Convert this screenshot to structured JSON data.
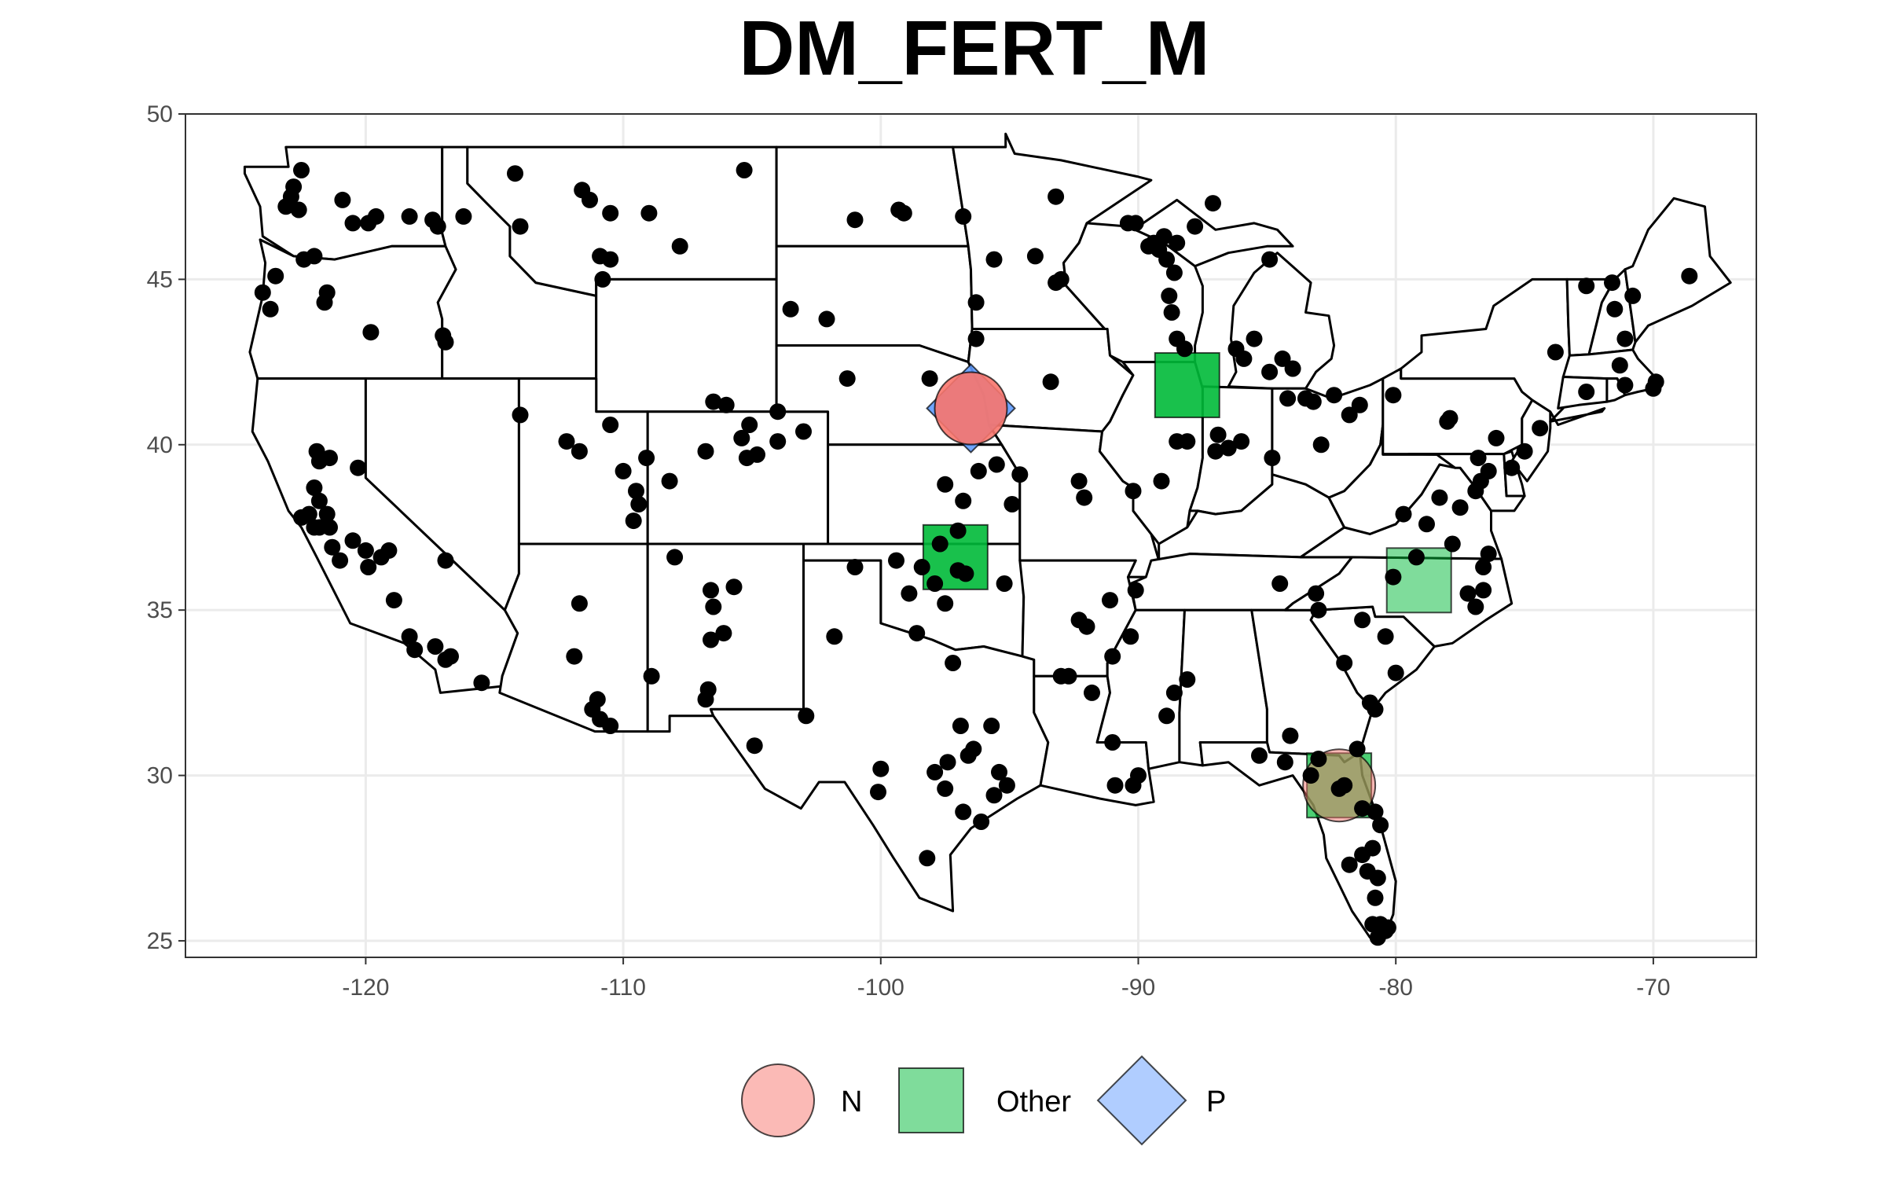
{
  "chart_data": {
    "type": "scatter",
    "title": "DM_FERT_M",
    "xlabel": "",
    "ylabel": "",
    "xlim": [
      -127,
      -66
    ],
    "ylim": [
      24.5,
      50
    ],
    "x_ticks": [
      -120,
      -110,
      -100,
      -90,
      -80,
      -70
    ],
    "x_tick_labels": [
      "-120",
      "-110",
      "-100",
      "-90",
      "-80",
      "-70"
    ],
    "y_ticks": [
      25,
      30,
      35,
      40,
      45,
      50
    ],
    "y_tick_labels": [
      "25",
      "30",
      "35",
      "40",
      "45",
      "50"
    ],
    "grid": true,
    "legend_position": "bottom",
    "legend": [
      {
        "label": "N",
        "shape": "circle",
        "color": "#F8766D"
      },
      {
        "label": "Other",
        "shape": "square",
        "color": "#00BA38"
      },
      {
        "label": "P",
        "shape": "diamond",
        "color": "#619CFF"
      }
    ],
    "highlights": [
      {
        "category": "N",
        "lon": -96.5,
        "lat": 41.1,
        "alpha": 0.9
      },
      {
        "category": "P",
        "lon": -96.5,
        "lat": 41.1,
        "alpha": 0.9
      },
      {
        "category": "Other",
        "lon": -88.1,
        "lat": 41.8,
        "alpha": 0.9
      },
      {
        "category": "Other",
        "lon": -97.1,
        "lat": 36.6,
        "alpha": 0.9
      },
      {
        "category": "Other",
        "lon": -79.1,
        "lat": 35.9,
        "alpha": 0.5
      },
      {
        "category": "Other",
        "lon": -82.2,
        "lat": 29.7,
        "alpha": 0.7
      },
      {
        "category": "N",
        "lon": -82.2,
        "lat": 29.7,
        "alpha": 0.5
      }
    ],
    "sites": [
      [
        -122.5,
        48.3
      ],
      [
        -122.8,
        47.8
      ],
      [
        -123.1,
        47.2
      ],
      [
        -122.6,
        47.1
      ],
      [
        -120.9,
        47.4
      ],
      [
        -120.5,
        46.7
      ],
      [
        -119.9,
        46.7
      ],
      [
        -119.6,
        46.9
      ],
      [
        -117.4,
        46.8
      ],
      [
        -117.2,
        46.6
      ],
      [
        -116.2,
        46.9
      ],
      [
        -118.3,
        46.9
      ],
      [
        -114.2,
        48.2
      ],
      [
        -114.0,
        46.6
      ],
      [
        -111.6,
        47.7
      ],
      [
        -111.3,
        47.4
      ],
      [
        -110.5,
        47.0
      ],
      [
        -109.0,
        47.0
      ],
      [
        -105.3,
        48.3
      ],
      [
        -110.9,
        45.7
      ],
      [
        -110.5,
        45.6
      ],
      [
        -110.8,
        45.0
      ],
      [
        -107.8,
        46.0
      ],
      [
        -101.0,
        46.8
      ],
      [
        -99.3,
        47.1
      ],
      [
        -99.1,
        47.0
      ],
      [
        -96.8,
        46.9
      ],
      [
        -95.6,
        45.6
      ],
      [
        -93.2,
        44.9
      ],
      [
        -93.0,
        45.0
      ],
      [
        -96.3,
        44.3
      ],
      [
        -96.3,
        43.2
      ],
      [
        -98.1,
        42.0
      ],
      [
        -101.3,
        42.0
      ],
      [
        -102.1,
        43.8
      ],
      [
        -103.5,
        44.1
      ],
      [
        -104.0,
        41.0
      ],
      [
        -93.4,
        41.9
      ],
      [
        -94.0,
        45.7
      ],
      [
        -93.2,
        47.5
      ],
      [
        -89.6,
        46.0
      ],
      [
        -89.2,
        45.9
      ],
      [
        -89.4,
        46.1
      ],
      [
        -89.0,
        46.3
      ],
      [
        -88.5,
        46.1
      ],
      [
        -88.9,
        45.6
      ],
      [
        -88.6,
        45.2
      ],
      [
        -88.7,
        44.0
      ],
      [
        -88.8,
        44.5
      ],
      [
        -88.5,
        43.2
      ],
      [
        -88.2,
        42.9
      ],
      [
        -90.1,
        46.7
      ],
      [
        -90.4,
        46.7
      ],
      [
        -87.1,
        47.3
      ],
      [
        -87.8,
        46.6
      ],
      [
        -84.9,
        45.6
      ],
      [
        -85.5,
        43.2
      ],
      [
        -84.4,
        42.6
      ],
      [
        -84.9,
        42.2
      ],
      [
        -85.9,
        42.6
      ],
      [
        -86.2,
        42.9
      ],
      [
        -84.0,
        42.3
      ],
      [
        -84.2,
        41.4
      ],
      [
        -83.5,
        41.4
      ],
      [
        -83.2,
        41.3
      ],
      [
        -82.4,
        41.5
      ],
      [
        -81.4,
        41.2
      ],
      [
        -81.8,
        40.9
      ],
      [
        -82.9,
        40.0
      ],
      [
        -84.8,
        39.6
      ],
      [
        -86.0,
        40.1
      ],
      [
        -86.5,
        39.9
      ],
      [
        -86.9,
        40.3
      ],
      [
        -87.0,
        39.8
      ],
      [
        -88.5,
        40.1
      ],
      [
        -88.1,
        40.1
      ],
      [
        -89.1,
        38.9
      ],
      [
        -90.2,
        38.6
      ],
      [
        -92.3,
        38.9
      ],
      [
        -92.1,
        38.4
      ],
      [
        -94.6,
        39.1
      ],
      [
        -94.9,
        38.2
      ],
      [
        -95.5,
        39.4
      ],
      [
        -96.2,
        39.2
      ],
      [
        -97.5,
        38.8
      ],
      [
        -96.8,
        38.3
      ],
      [
        -97.0,
        37.4
      ],
      [
        -97.7,
        37.0
      ],
      [
        -98.4,
        36.3
      ],
      [
        -97.0,
        36.2
      ],
      [
        -96.7,
        36.1
      ],
      [
        -97.9,
        35.8
      ],
      [
        -97.5,
        35.2
      ],
      [
        -98.9,
        35.5
      ],
      [
        -99.4,
        36.5
      ],
      [
        -101.0,
        36.3
      ],
      [
        -101.8,
        34.2
      ],
      [
        -98.6,
        34.3
      ],
      [
        -97.2,
        33.4
      ],
      [
        -96.9,
        31.5
      ],
      [
        -96.6,
        30.6
      ],
      [
        -97.4,
        30.4
      ],
      [
        -97.9,
        30.1
      ],
      [
        -97.5,
        29.6
      ],
      [
        -96.4,
        30.8
      ],
      [
        -95.7,
        31.5
      ],
      [
        -95.4,
        30.1
      ],
      [
        -95.6,
        29.4
      ],
      [
        -95.1,
        29.7
      ],
      [
        -96.1,
        28.6
      ],
      [
        -96.8,
        28.9
      ],
      [
        -98.2,
        27.5
      ],
      [
        -100.0,
        30.2
      ],
      [
        -100.1,
        29.5
      ],
      [
        -102.9,
        31.8
      ],
      [
        -104.9,
        30.9
      ],
      [
        -106.8,
        32.3
      ],
      [
        -106.7,
        32.6
      ],
      [
        -106.6,
        34.1
      ],
      [
        -106.1,
        34.3
      ],
      [
        -106.5,
        35.1
      ],
      [
        -106.6,
        35.6
      ],
      [
        -105.7,
        35.7
      ],
      [
        -108.0,
        36.6
      ],
      [
        -108.9,
        33.0
      ],
      [
        -110.5,
        31.5
      ],
      [
        -110.9,
        31.7
      ],
      [
        -111.0,
        32.3
      ],
      [
        -111.2,
        32.0
      ],
      [
        -111.9,
        33.6
      ],
      [
        -111.7,
        35.2
      ],
      [
        -109.6,
        37.7
      ],
      [
        -109.5,
        38.6
      ],
      [
        -109.4,
        38.2
      ],
      [
        -110.0,
        39.2
      ],
      [
        -110.5,
        40.6
      ],
      [
        -111.7,
        39.8
      ],
      [
        -112.2,
        40.1
      ],
      [
        -114.0,
        40.9
      ],
      [
        -116.9,
        36.5
      ],
      [
        -115.5,
        32.8
      ],
      [
        -116.7,
        33.6
      ],
      [
        -116.9,
        33.5
      ],
      [
        -117.3,
        33.9
      ],
      [
        -118.1,
        33.8
      ],
      [
        -118.3,
        34.2
      ],
      [
        -118.9,
        35.3
      ],
      [
        -119.1,
        36.8
      ],
      [
        -119.4,
        36.6
      ],
      [
        -119.9,
        36.3
      ],
      [
        -120.0,
        36.8
      ],
      [
        -120.5,
        37.1
      ],
      [
        -121.0,
        36.5
      ],
      [
        -121.3,
        36.9
      ],
      [
        -121.4,
        37.5
      ],
      [
        -121.8,
        37.5
      ],
      [
        -121.5,
        37.9
      ],
      [
        -122.0,
        37.5
      ],
      [
        -122.2,
        37.9
      ],
      [
        -122.5,
        37.8
      ],
      [
        -121.8,
        38.3
      ],
      [
        -122.0,
        38.7
      ],
      [
        -121.8,
        39.5
      ],
      [
        -121.9,
        39.8
      ],
      [
        -121.4,
        39.6
      ],
      [
        -120.3,
        39.3
      ],
      [
        -119.8,
        43.4
      ],
      [
        -116.9,
        43.1
      ],
      [
        -117.0,
        43.3
      ],
      [
        -122.0,
        45.7
      ],
      [
        -122.4,
        45.6
      ],
      [
        -121.5,
        44.6
      ],
      [
        -121.6,
        44.3
      ],
      [
        -123.5,
        45.1
      ],
      [
        -124.0,
        44.6
      ],
      [
        -123.7,
        44.1
      ],
      [
        -122.9,
        47.5
      ],
      [
        -109.1,
        39.6
      ],
      [
        -106.8,
        39.8
      ],
      [
        -105.1,
        40.6
      ],
      [
        -105.4,
        40.2
      ],
      [
        -105.2,
        39.6
      ],
      [
        -104.8,
        39.7
      ],
      [
        -104.0,
        40.1
      ],
      [
        -103.0,
        40.4
      ],
      [
        -106.5,
        41.3
      ],
      [
        -106.0,
        41.2
      ],
      [
        -108.2,
        38.9
      ],
      [
        -95.2,
        35.8
      ],
      [
        -92.3,
        34.7
      ],
      [
        -92.0,
        34.5
      ],
      [
        -91.1,
        35.3
      ],
      [
        -92.7,
        33.0
      ],
      [
        -93.0,
        33.0
      ],
      [
        -91.8,
        32.5
      ],
      [
        -91.0,
        33.6
      ],
      [
        -90.1,
        35.6
      ],
      [
        -90.3,
        34.2
      ],
      [
        -91.0,
        31.0
      ],
      [
        -90.9,
        29.7
      ],
      [
        -90.2,
        29.7
      ],
      [
        -90.0,
        30.0
      ],
      [
        -88.1,
        32.9
      ],
      [
        -88.6,
        32.5
      ],
      [
        -88.9,
        31.8
      ],
      [
        -84.1,
        31.2
      ],
      [
        -84.5,
        35.8
      ],
      [
        -83.1,
        35.5
      ],
      [
        -83.0,
        35.0
      ],
      [
        -82.0,
        33.4
      ],
      [
        -81.0,
        32.2
      ],
      [
        -80.0,
        33.1
      ],
      [
        -80.4,
        34.2
      ],
      [
        -81.3,
        34.7
      ],
      [
        -79.2,
        36.6
      ],
      [
        -80.1,
        36.0
      ],
      [
        -76.4,
        36.7
      ],
      [
        -76.6,
        36.3
      ],
      [
        -76.6,
        35.6
      ],
      [
        -76.9,
        35.1
      ],
      [
        -77.2,
        35.5
      ],
      [
        -77.8,
        37.0
      ],
      [
        -78.8,
        37.6
      ],
      [
        -79.7,
        37.9
      ],
      [
        -78.3,
        38.4
      ],
      [
        -77.5,
        38.1
      ],
      [
        -76.9,
        38.6
      ],
      [
        -76.7,
        38.9
      ],
      [
        -76.4,
        39.2
      ],
      [
        -75.5,
        39.3
      ],
      [
        -75.0,
        39.8
      ],
      [
        -74.4,
        40.5
      ],
      [
        -76.1,
        40.2
      ],
      [
        -77.9,
        40.8
      ],
      [
        -78.0,
        40.7
      ],
      [
        -80.1,
        41.5
      ],
      [
        -76.8,
        39.6
      ],
      [
        -71.3,
        42.4
      ],
      [
        -71.1,
        41.8
      ],
      [
        -70.0,
        41.7
      ],
      [
        -69.9,
        41.9
      ],
      [
        -72.6,
        41.6
      ],
      [
        -73.8,
        42.8
      ],
      [
        -71.1,
        43.2
      ],
      [
        -71.5,
        44.1
      ],
      [
        -72.6,
        44.8
      ],
      [
        -71.6,
        44.9
      ],
      [
        -70.8,
        44.5
      ],
      [
        -68.6,
        45.1
      ],
      [
        -82.0,
        29.7
      ],
      [
        -82.2,
        29.6
      ],
      [
        -81.3,
        29.0
      ],
      [
        -80.8,
        28.9
      ],
      [
        -80.6,
        28.5
      ],
      [
        -80.9,
        27.8
      ],
      [
        -81.3,
        27.6
      ],
      [
        -81.8,
        27.3
      ],
      [
        -81.1,
        27.1
      ],
      [
        -80.7,
        26.9
      ],
      [
        -80.8,
        26.3
      ],
      [
        -80.6,
        25.5
      ],
      [
        -80.9,
        25.5
      ],
      [
        -80.4,
        25.3
      ],
      [
        -80.7,
        25.1
      ],
      [
        -80.3,
        25.4
      ],
      [
        -83.3,
        30.0
      ],
      [
        -83.0,
        30.5
      ],
      [
        -84.3,
        30.4
      ],
      [
        -85.3,
        30.6
      ],
      [
        -81.5,
        30.8
      ],
      [
        -80.8,
        32.0
      ]
    ]
  }
}
